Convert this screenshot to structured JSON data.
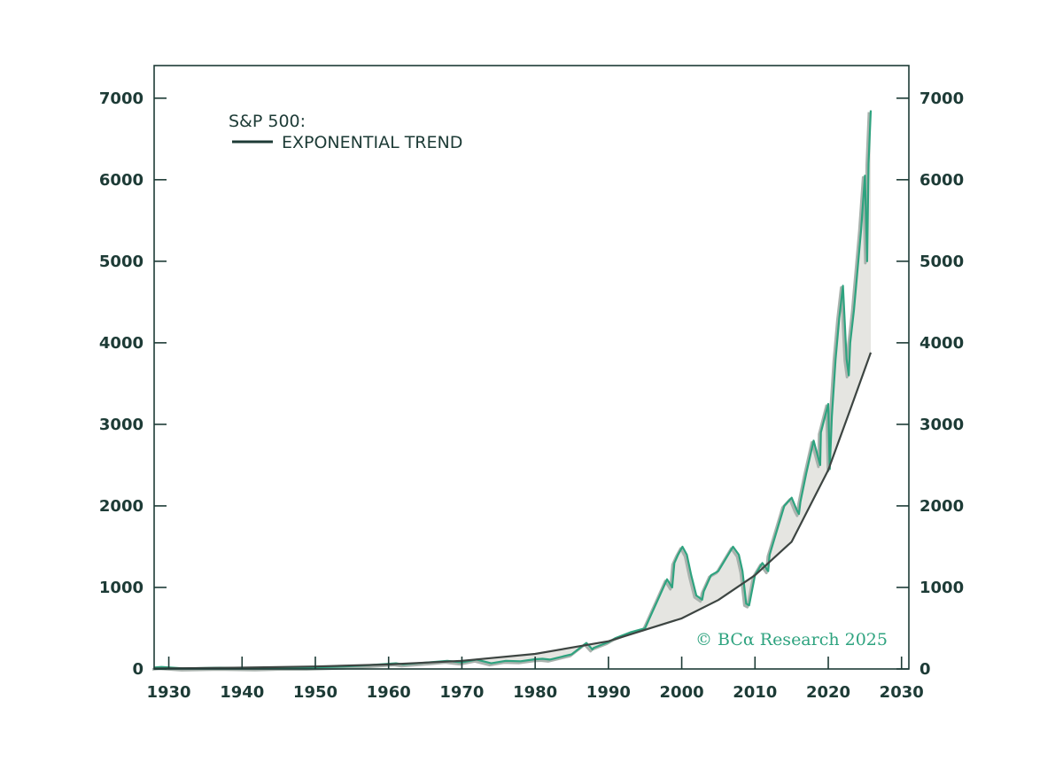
{
  "legend": {
    "title": "S&P 500:",
    "entry": "EXPONENTIAL TREND"
  },
  "watermark": "© BCα Research 2025",
  "colors": {
    "frame": "#1d3b36",
    "sp500": "#2ea37f",
    "sp500_shadow": "#a9b2ad",
    "trend": "#3d4542",
    "gap_fill": "#e5e5e1"
  },
  "chart_data": {
    "type": "line",
    "title": "",
    "xlabel": "",
    "ylabel": "",
    "xlim": [
      1928,
      2031
    ],
    "ylim": [
      0,
      7400
    ],
    "x_ticks": [
      1930,
      1940,
      1950,
      1960,
      1970,
      1980,
      1990,
      2000,
      2010,
      2020,
      2030
    ],
    "x_tick_labels": [
      "1930",
      "1940",
      "1950",
      "1960",
      "1970",
      "1980",
      "1990",
      "2000",
      "2010",
      "2020",
      "2030"
    ],
    "y_ticks": [
      0,
      1000,
      2000,
      3000,
      4000,
      5000,
      6000,
      7000
    ],
    "y_tick_labels": [
      "0",
      "1000",
      "2000",
      "3000",
      "4000",
      "5000",
      "6000",
      "7000"
    ],
    "y_axis_both_sides": true,
    "grid": false,
    "legend_position": "top-left",
    "fill_between_series": true,
    "series": [
      {
        "name": "S&P 500",
        "x": [
          1928,
          1929,
          1932,
          1937,
          1942,
          1946,
          1949,
          1954,
          1957,
          1961,
          1962,
          1966,
          1968,
          1970,
          1972,
          1974,
          1976,
          1978,
          1980,
          1981,
          1982,
          1985,
          1987,
          1987.8,
          1988,
          1990,
          1991,
          1993,
          1995,
          1996,
          1997,
          1998,
          1998.7,
          1999,
          1999.5,
          2000.1,
          2000.7,
          2001.3,
          2002,
          2002.8,
          2003,
          2004,
          2005,
          2006,
          2007,
          2007.8,
          2008.3,
          2008.8,
          2009.2,
          2010,
          2011,
          2011.8,
          2012,
          2013,
          2014,
          2015,
          2015.7,
          2016,
          2016.2,
          2017,
          2018,
          2018.9,
          2019,
          2020,
          2020.2,
          2020.5,
          2021,
          2021.5,
          2022,
          2022.5,
          2022.8,
          2023,
          2023.5,
          2024,
          2024.5,
          2025,
          2025.3,
          2025.5,
          2025.8
        ],
        "values": [
          17,
          25,
          7,
          15,
          9,
          17,
          16,
          30,
          45,
          70,
          56,
          85,
          100,
          80,
          115,
          70,
          100,
          95,
          120,
          125,
          115,
          180,
          320,
          240,
          260,
          330,
          380,
          450,
          500,
          700,
          900,
          1100,
          1000,
          1300,
          1400,
          1500,
          1400,
          1150,
          900,
          850,
          950,
          1150,
          1200,
          1350,
          1500,
          1400,
          1200,
          800,
          780,
          1150,
          1300,
          1200,
          1400,
          1700,
          2000,
          2100,
          1950,
          1900,
          2050,
          2400,
          2800,
          2500,
          2900,
          3250,
          2450,
          3100,
          3800,
          4300,
          4700,
          3800,
          3600,
          4000,
          4400,
          4900,
          5400,
          6050,
          5000,
          6200,
          6850
        ]
      },
      {
        "name": "EXPONENTIAL TREND",
        "x": [
          1928,
          1940,
          1950,
          1960,
          1970,
          1980,
          1990,
          2000,
          2005,
          2010,
          2015,
          2020,
          2023,
          2025.8
        ],
        "values": [
          5,
          16,
          30,
          55,
          100,
          185,
          340,
          620,
          845,
          1150,
          1560,
          2440,
          3180,
          3880
        ]
      }
    ]
  }
}
